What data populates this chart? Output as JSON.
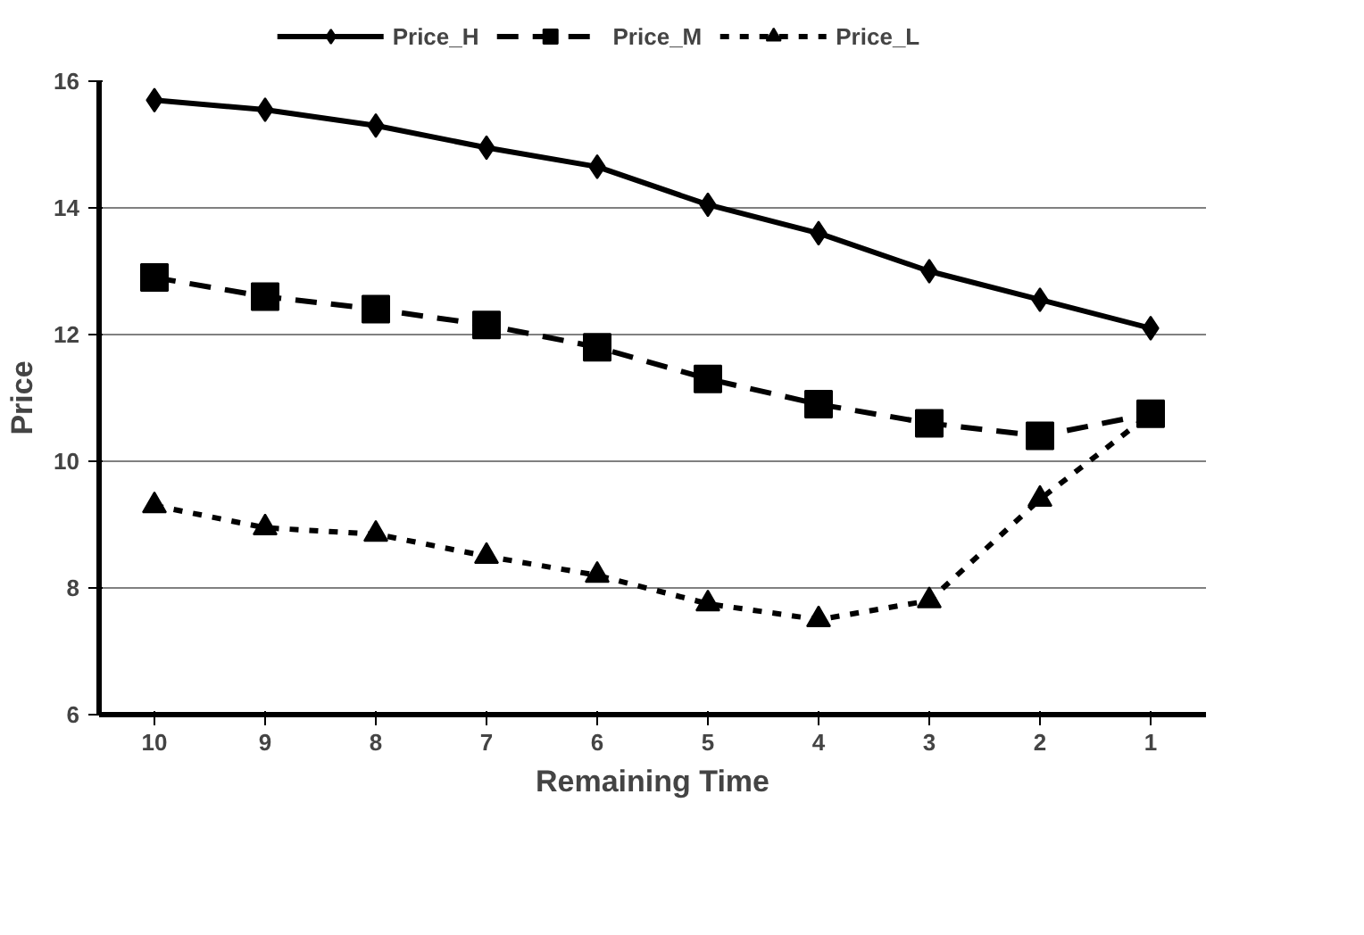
{
  "chart_data": {
    "type": "line",
    "xlabel": "Remaining Time",
    "ylabel": "Price",
    "categories": [
      "10",
      "9",
      "8",
      "7",
      "6",
      "5",
      "4",
      "3",
      "2",
      "1"
    ],
    "series": [
      {
        "name": "Price_H",
        "color": "#000000",
        "marker": "diamond",
        "line_style": "solid",
        "values": [
          15.7,
          15.55,
          15.3,
          14.95,
          14.65,
          14.05,
          13.6,
          13.0,
          12.55,
          12.1
        ]
      },
      {
        "name": "Price_M",
        "color": "#000000",
        "marker": "square",
        "line_style": "dashed",
        "values": [
          12.9,
          12.6,
          12.4,
          12.15,
          11.8,
          11.3,
          10.9,
          10.6,
          10.4,
          10.75
        ]
      },
      {
        "name": "Price_L",
        "color": "#000000",
        "marker": "triangle",
        "line_style": "dotted",
        "values": [
          9.3,
          8.95,
          8.85,
          8.5,
          8.2,
          7.75,
          7.5,
          7.8,
          9.4,
          10.75
        ]
      }
    ],
    "ylim": [
      6,
      16
    ],
    "yticks": [
      6,
      8,
      10,
      12,
      14,
      16
    ],
    "grid": "y",
    "legend": "top"
  }
}
